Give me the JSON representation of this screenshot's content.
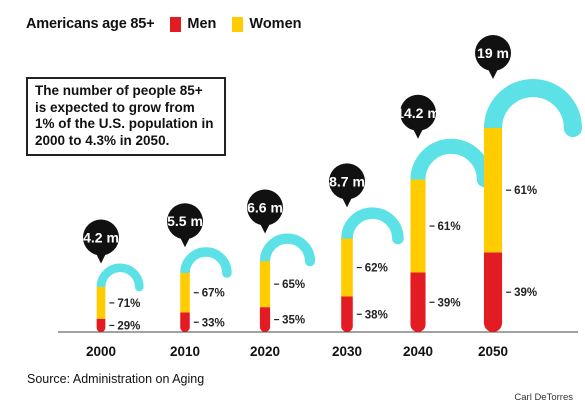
{
  "chart_data": {
    "type": "bar",
    "title": "Americans age 85+",
    "categories": [
      "2000",
      "2010",
      "2020",
      "2030",
      "2040",
      "2050"
    ],
    "population_labels": [
      "4.2 m",
      "5.5 m",
      "6.6 m",
      "8.7 m",
      "14.2 m",
      "19 m"
    ],
    "population_millions": [
      4.2,
      5.5,
      6.6,
      8.7,
      14.2,
      19
    ],
    "series": [
      {
        "name": "Men",
        "values": [
          29,
          33,
          35,
          38,
          39,
          39
        ],
        "labels": [
          "29%",
          "33%",
          "35%",
          "38%",
          "39%",
          "39%"
        ]
      },
      {
        "name": "Women",
        "values": [
          71,
          67,
          65,
          62,
          61,
          61
        ],
        "labels": [
          "71%",
          "67%",
          "65%",
          "62%",
          "61%",
          "61%"
        ]
      }
    ],
    "callout": "The number of people 85+ is expected to grow from 1% of the U.S. population in 2000 to 4.3% in 2050.",
    "source": "Source: Administration on Aging",
    "credit": "Carl DeTorres",
    "colors": {
      "men": "#e31b23",
      "women": "#ffcc00",
      "handle": "#5ce1e6",
      "bubble": "#111111"
    }
  }
}
